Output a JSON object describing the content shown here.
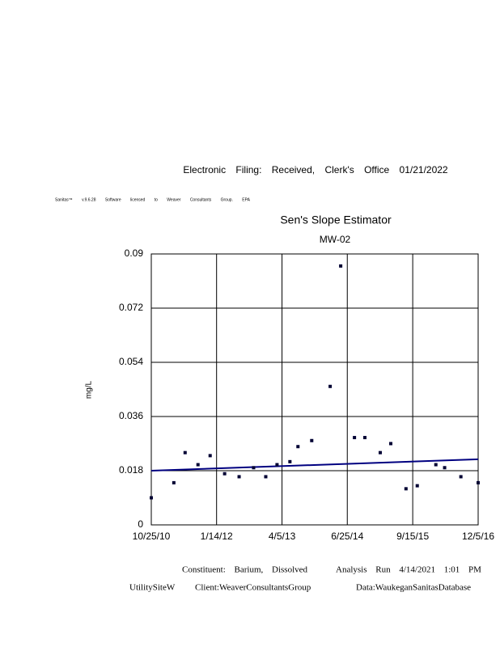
{
  "header": "Electronic Filing: Received, Clerk's Office 01/21/2022",
  "software_note": "Sanitas™ v.9.6.28 Software licensed to Weaver Consultants Group. EPA",
  "chart_data": {
    "type": "scatter",
    "title": "Sen's Slope Estimator",
    "subtitle": "MW-02",
    "y_label": "mg/L",
    "xlim": [
      "2010-10-25",
      "2016-12-05"
    ],
    "xticks": [
      {
        "value": "2010-10-25",
        "label": "10/25/10"
      },
      {
        "value": "2012-01-14",
        "label": "1/14/12"
      },
      {
        "value": "2013-04-05",
        "label": "4/5/13"
      },
      {
        "value": "2014-06-25",
        "label": "6/25/14"
      },
      {
        "value": "2015-09-15",
        "label": "9/15/15"
      },
      {
        "value": "2016-12-05",
        "label": "12/5/16"
      }
    ],
    "ylim": [
      0,
      0.09
    ],
    "yticks": [
      0,
      0.018,
      0.036,
      0.054,
      0.072,
      0.09
    ],
    "grid": true,
    "points": {
      "color": "#000033",
      "x": [
        "2010-10-25",
        "2011-03-28",
        "2011-06-13",
        "2011-09-09",
        "2011-12-01",
        "2012-03-09",
        "2012-06-16",
        "2012-09-23",
        "2012-12-15",
        "2013-03-02",
        "2013-05-29",
        "2013-07-23",
        "2013-10-25",
        "2014-02-28",
        "2014-05-11",
        "2014-08-13",
        "2014-10-23",
        "2015-02-05",
        "2015-04-18",
        "2015-07-31",
        "2015-10-16",
        "2016-02-20",
        "2016-04-20",
        "2016-08-09",
        "2016-12-05"
      ],
      "values": [
        0.009,
        0.014,
        0.024,
        0.02,
        0.023,
        0.017,
        0.016,
        0.019,
        0.016,
        0.02,
        0.021,
        0.026,
        0.028,
        0.046,
        0.086,
        0.029,
        0.029,
        0.024,
        0.027,
        0.012,
        0.013,
        0.02,
        0.019,
        0.016,
        0.014
      ]
    },
    "trend": {
      "color": "#000080",
      "x": [
        "2010-10-25",
        "2016-12-05"
      ],
      "values": [
        0.018,
        0.0218
      ]
    },
    "footer": {
      "constituent": "Constituent: Barium, Dissolved",
      "analysis": "Analysis Run 4/14/2021 1:01 PM",
      "site": "UtilitySiteW",
      "client": "Client:WeaverConsultantsGroup",
      "database": "Data:WaukeganSanitasDatabase"
    }
  }
}
